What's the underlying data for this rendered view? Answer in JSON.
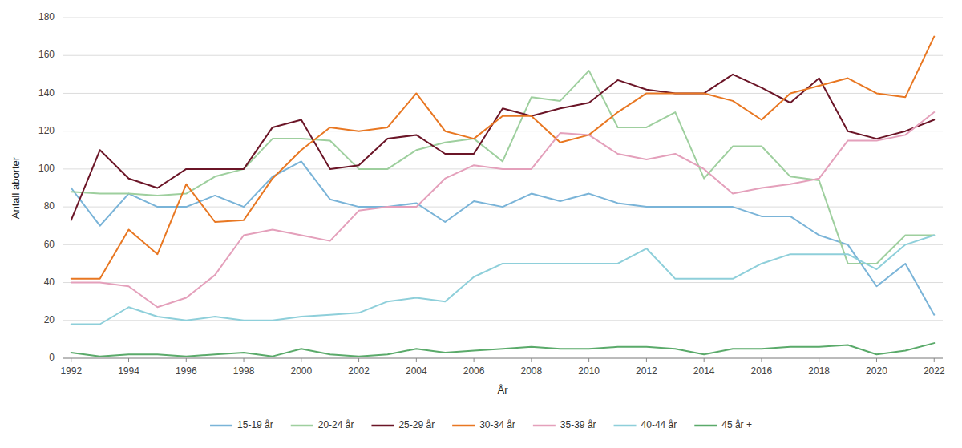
{
  "chart_data": {
    "type": "line",
    "xlabel": "År",
    "ylabel": "Antall aborter",
    "x": [
      1992,
      1993,
      1994,
      1995,
      1996,
      1997,
      1998,
      1999,
      2000,
      2001,
      2002,
      2003,
      2004,
      2005,
      2006,
      2007,
      2008,
      2009,
      2010,
      2011,
      2012,
      2013,
      2014,
      2015,
      2016,
      2017,
      2018,
      2019,
      2020,
      2021,
      2022
    ],
    "series": [
      {
        "name": "15-19 år",
        "color": "#7ab4d8",
        "values": [
          90,
          70,
          87,
          80,
          80,
          86,
          80,
          96,
          104,
          84,
          80,
          80,
          82,
          72,
          83,
          80,
          87,
          83,
          87,
          82,
          80,
          80,
          80,
          80,
          75,
          75,
          65,
          60,
          38,
          50,
          23
        ]
      },
      {
        "name": "20-24 år",
        "color": "#9ecf9e",
        "values": [
          88,
          87,
          87,
          86,
          87,
          96,
          100,
          116,
          116,
          115,
          100,
          100,
          110,
          114,
          116,
          104,
          138,
          136,
          152,
          122,
          122,
          130,
          95,
          112,
          112,
          96,
          94,
          50,
          50,
          65,
          65
        ]
      },
      {
        "name": "25-29 år",
        "color": "#6b1527",
        "values": [
          73,
          110,
          95,
          90,
          100,
          100,
          100,
          122,
          126,
          100,
          102,
          116,
          118,
          108,
          108,
          132,
          128,
          132,
          135,
          147,
          142,
          140,
          140,
          150,
          143,
          135,
          148,
          120,
          116,
          120,
          126
        ]
      },
      {
        "name": "30-34 år",
        "color": "#e87722",
        "values": [
          42,
          42,
          68,
          55,
          92,
          72,
          73,
          95,
          110,
          122,
          120,
          122,
          140,
          120,
          116,
          128,
          128,
          114,
          118,
          130,
          140,
          140,
          140,
          136,
          126,
          140,
          144,
          148,
          140,
          138,
          170
        ]
      },
      {
        "name": "35-39 år",
        "color": "#e4a0bb",
        "values": [
          40,
          40,
          38,
          27,
          32,
          44,
          65,
          68,
          65,
          62,
          78,
          80,
          80,
          95,
          102,
          100,
          100,
          119,
          118,
          108,
          105,
          108,
          100,
          87,
          90,
          92,
          95,
          115,
          115,
          118,
          130
        ]
      },
      {
        "name": "40-44 år",
        "color": "#8ecfda",
        "values": [
          18,
          18,
          27,
          22,
          20,
          22,
          20,
          20,
          22,
          23,
          24,
          30,
          32,
          30,
          43,
          50,
          50,
          50,
          50,
          50,
          58,
          42,
          42,
          42,
          50,
          55,
          55,
          55,
          47,
          60,
          65
        ]
      },
      {
        "name": "45 år +",
        "color": "#5aaa6a",
        "values": [
          3,
          1,
          2,
          2,
          1,
          2,
          3,
          1,
          5,
          2,
          1,
          2,
          5,
          3,
          4,
          5,
          6,
          5,
          5,
          6,
          6,
          5,
          2,
          5,
          5,
          6,
          6,
          7,
          2,
          4,
          8
        ]
      }
    ],
    "xlim": [
      1991.7,
      2022.3
    ],
    "xticks": [
      1992,
      1994,
      1996,
      1998,
      2000,
      2002,
      2004,
      2006,
      2008,
      2010,
      2012,
      2014,
      2016,
      2018,
      2020,
      2022
    ],
    "ylim": [
      0,
      180
    ],
    "yticks": [
      0,
      20,
      40,
      60,
      80,
      100,
      120,
      140,
      160,
      180
    ],
    "grid": "y",
    "legend": "bottom"
  }
}
